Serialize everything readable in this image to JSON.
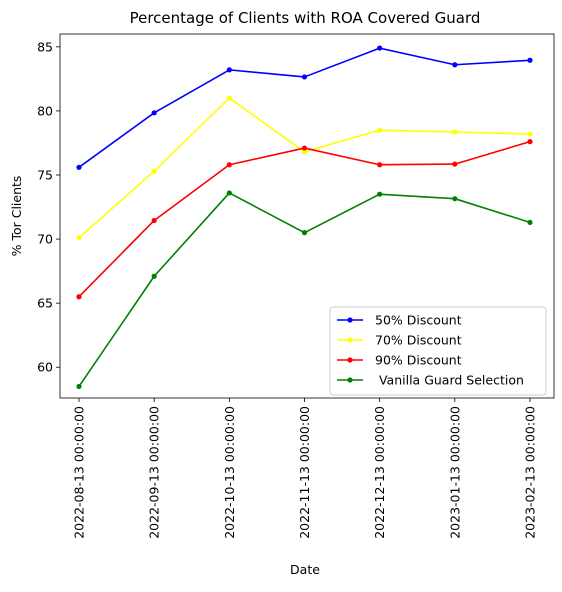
{
  "chart_data": {
    "type": "line",
    "title": "Percentage of Clients with ROA Covered Guard",
    "xlabel": "Date",
    "ylabel": "% Tor Clients",
    "categories": [
      "2022-08-13 00:00:00",
      "2022-09-13 00:00:00",
      "2022-10-13 00:00:00",
      "2022-11-13 00:00:00",
      "2022-12-13 00:00:00",
      "2023-01-13 00:00:00",
      "2023-02-13 00:00:00"
    ],
    "ylim": [
      57.6,
      86.0
    ],
    "yticks": [
      60,
      65,
      70,
      75,
      80,
      85
    ],
    "grid": false,
    "legend_position": "lower-right",
    "series": [
      {
        "name": "50% Discount",
        "color": "#0000ff",
        "marker": "dot",
        "values": [
          75.6,
          79.85,
          83.2,
          82.65,
          84.9,
          83.6,
          83.95
        ]
      },
      {
        "name": "70% Discount",
        "color": "#ffff00",
        "marker": "dot",
        "values": [
          70.1,
          75.3,
          81.0,
          76.8,
          78.5,
          78.35,
          78.2
        ]
      },
      {
        "name": "90% Discount",
        "color": "#ff0000",
        "marker": "dot",
        "values": [
          65.5,
          71.45,
          75.8,
          77.1,
          75.8,
          75.85,
          77.6
        ]
      },
      {
        "name": " Vanilla Guard Selection",
        "color": "#008000",
        "marker": "dot",
        "values": [
          58.5,
          67.1,
          73.6,
          70.5,
          73.5,
          73.15,
          71.3
        ]
      }
    ]
  }
}
